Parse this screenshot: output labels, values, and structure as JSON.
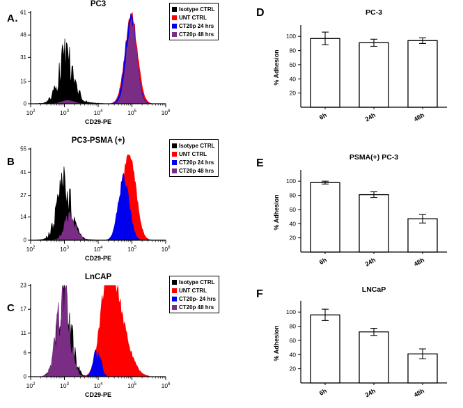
{
  "figure": {
    "background": "#ffffff"
  },
  "chart_data": [
    {
      "id": "A",
      "panel_label": "A.",
      "type": "area",
      "subtype": "flow-cytometry-histogram",
      "title": "PC3",
      "xlabel": "CD29-PE",
      "xscale": "log10",
      "xlim_log10": [
        2,
        6
      ],
      "xticklabels": [
        "10^2",
        "10^3",
        "10^4",
        "10^5",
        "10^6"
      ],
      "ylim": [
        0,
        61
      ],
      "yticks": [
        0,
        15,
        31,
        46,
        61
      ],
      "legend_position": "top-right",
      "series": [
        {
          "name": "Isotype CTRL",
          "color": "#000000",
          "noise": 0.5,
          "peaks": [
            {
              "center_log10": 3.05,
              "sigma": 0.22,
              "height": 30
            },
            {
              "center_log10": 3.2,
              "sigma": 0.5,
              "height": 1.0
            }
          ]
        },
        {
          "name": "UNT CTRL",
          "color": "#ff0000",
          "noise": 0.08,
          "peaks": [
            {
              "center_log10": 4.98,
              "sigma": 0.18,
              "height": 59
            }
          ]
        },
        {
          "name": "CT20p 24 hrs",
          "color": "#0000ee",
          "noise": 0.08,
          "peaks": [
            {
              "center_log10": 4.97,
              "sigma": 0.165,
              "height": 57
            }
          ]
        },
        {
          "name": "CT20p 48 hrs",
          "color": "#7b2d86",
          "noise": 0.08,
          "peaks": [
            {
              "center_log10": 4.99,
              "sigma": 0.15,
              "height": 55
            },
            {
              "center_log10": 3.1,
              "sigma": 0.18,
              "height": 2.2
            }
          ]
        }
      ],
      "legend": [
        {
          "label": "Isotype CTRL",
          "color": "#000000"
        },
        {
          "label": "UNT CTRL",
          "color": "#ff0000"
        },
        {
          "label": "CT20p 24 hrs",
          "color": "#0000ee"
        },
        {
          "label": "CT20p 48 hrs",
          "color": "#7b2d86"
        }
      ]
    },
    {
      "id": "B",
      "panel_label": "B",
      "type": "area",
      "subtype": "flow-cytometry-histogram",
      "title": "PC3-PSMA (+)",
      "xlabel": "CD29-PE",
      "xscale": "log10",
      "xlim_log10": [
        2,
        6
      ],
      "xticklabels": [
        "10^2",
        "10^3",
        "10^4",
        "10^5",
        "10^6"
      ],
      "ylim": [
        0,
        55
      ],
      "yticks": [
        0,
        14,
        27,
        41,
        55
      ],
      "legend_position": "top-right",
      "series": [
        {
          "name": "Isotype CTRL",
          "color": "#000000",
          "noise": 0.5,
          "peaks": [
            {
              "center_log10": 3.0,
              "sigma": 0.21,
              "height": 29
            },
            {
              "center_log10": 3.0,
              "sigma": 0.45,
              "height": 1.0
            }
          ]
        },
        {
          "name": "CT20p 48 hrs",
          "color": "#7b2d86",
          "noise": 0.45,
          "peaks": [
            {
              "center_log10": 3.17,
              "sigma": 0.17,
              "height": 13
            }
          ]
        },
        {
          "name": "UNT CTRL",
          "color": "#ff0000",
          "noise": 0.07,
          "peaks": [
            {
              "center_log10": 4.92,
              "sigma": 0.19,
              "height": 53.5
            }
          ]
        },
        {
          "name": "CT20p 24 hrs",
          "color": "#0000ee",
          "noise": 0.1,
          "peaks": [
            {
              "center_log10": 4.76,
              "sigma": 0.16,
              "height": 37
            }
          ]
        }
      ],
      "legend": [
        {
          "label": "Isotype CTRL",
          "color": "#000000"
        },
        {
          "label": "UNT CTRL",
          "color": "#ff0000"
        },
        {
          "label": "CT20p 24 hrs",
          "color": "#0000ee"
        },
        {
          "label": "CT20p 48 hrs",
          "color": "#7b2d86"
        }
      ]
    },
    {
      "id": "C",
      "panel_label": "C",
      "type": "area",
      "subtype": "flow-cytometry-histogram",
      "title": "LnCAP",
      "xlabel": "CD29-PE",
      "xscale": "log10",
      "xlim_log10": [
        2,
        6
      ],
      "xticklabels": [
        "10^2",
        "10^3",
        "10^4",
        "10^5",
        "10^6"
      ],
      "ylim": [
        0,
        23
      ],
      "yticks": [
        0,
        6,
        11,
        17,
        23
      ],
      "legend_position": "top-right",
      "series": [
        {
          "name": "Isotype CTRL",
          "color": "#000000",
          "noise": 0.5,
          "peaks": [
            {
              "center_log10": 3.0,
              "sigma": 0.2,
              "height": 20.5
            }
          ]
        },
        {
          "name": "CT20p 48 hrs",
          "color": "#7b2d86",
          "noise": 0.4,
          "peaks": [
            {
              "center_log10": 2.96,
              "sigma": 0.19,
              "height": 19
            }
          ]
        },
        {
          "name": "UNT CTRL",
          "color": "#ff0000",
          "noise": 0.12,
          "peaks": [
            {
              "center_log10": 4.3,
              "sigma": 0.22,
              "height": 22
            },
            {
              "center_log10": 4.62,
              "sigma": 0.3,
              "height": 12
            }
          ]
        },
        {
          "name": "CT20p- 24 hrs",
          "color": "#0000ee",
          "noise": 0.3,
          "peaks": [
            {
              "center_log10": 3.97,
              "sigma": 0.11,
              "height": 6.2
            }
          ]
        }
      ],
      "legend": [
        {
          "label": "Isotype CTRL",
          "color": "#000000"
        },
        {
          "label": "UNT CTRL",
          "color": "#ff0000"
        },
        {
          "label": "CT20p- 24 hrs",
          "color": "#0000ee"
        },
        {
          "label": "CT20p 48 hrs",
          "color": "#7b2d86"
        }
      ]
    },
    {
      "id": "D",
      "panel_label": "D",
      "type": "bar",
      "title": "PC-3",
      "ylabel": "% Adhesion",
      "categories": [
        "6h",
        "24h",
        "48h"
      ],
      "values": [
        97,
        91,
        94
      ],
      "errors": [
        9,
        5,
        4
      ],
      "ylim": [
        0,
        112
      ],
      "yticks": [
        20,
        40,
        60,
        80,
        100
      ],
      "bar_fill": "#ffffff",
      "bar_stroke": "#000000"
    },
    {
      "id": "E",
      "panel_label": "E",
      "type": "bar",
      "title": "PSMA(+) PC-3",
      "ylabel": "% Adhesion",
      "categories": [
        "6h",
        "24h",
        "48h"
      ],
      "values": [
        98,
        81,
        47
      ],
      "errors": [
        2,
        4,
        6
      ],
      "ylim": [
        0,
        112
      ],
      "yticks": [
        20,
        40,
        60,
        80,
        100
      ],
      "bar_fill": "#ffffff",
      "bar_stroke": "#000000"
    },
    {
      "id": "F",
      "panel_label": "F",
      "type": "bar",
      "title": "LNCaP",
      "ylabel": "% Adhesion",
      "categories": [
        "6h",
        "24h",
        "48h"
      ],
      "values": [
        96,
        72,
        41
      ],
      "errors": [
        8,
        5,
        7
      ],
      "ylim": [
        0,
        112
      ],
      "yticks": [
        20,
        40,
        60,
        80,
        100
      ],
      "bar_fill": "#ffffff",
      "bar_stroke": "#000000"
    }
  ]
}
